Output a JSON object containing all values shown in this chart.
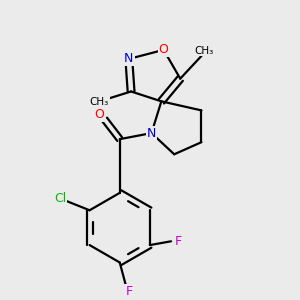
{
  "background_color": "#ebebeb",
  "bond_color": "#000000",
  "atom_colors": {
    "O": "#ff0000",
    "N": "#0000cc",
    "Cl": "#00bb00",
    "F": "#cc00cc",
    "C": "#000000"
  },
  "figsize": [
    3.0,
    3.0
  ],
  "dpi": 100
}
